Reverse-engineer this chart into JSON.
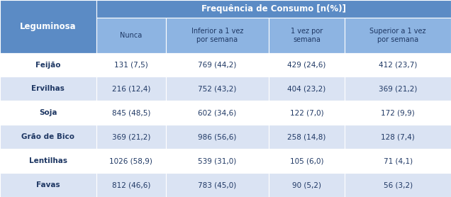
{
  "title": "Frequência de Consumo [n(%)]",
  "col_headers": [
    "Leguminosa",
    "Nunca",
    "Inferior a 1 vez\npor semana",
    "1 vez por\nsemana",
    "Superior a 1 vez\npor semana"
  ],
  "rows": [
    [
      "Feijão",
      "131 (7,5)",
      "769 (44,2)",
      "429 (24,6)",
      "412 (23,7)"
    ],
    [
      "Ervilhas",
      "216 (12,4)",
      "752 (43,2)",
      "404 (23,2)",
      "369 (21,2)"
    ],
    [
      "Soja",
      "845 (48,5)",
      "602 (34,6)",
      "122 (7,0)",
      "172 (9,9)"
    ],
    [
      "Grão de Bico",
      "369 (21,2)",
      "986 (56,6)",
      "258 (14,8)",
      "128 (7,4)"
    ],
    [
      "Lentilhas",
      "1026 (58,9)",
      "539 (31,0)",
      "105 (6,0)",
      "71 (4,1)"
    ],
    [
      "Favas",
      "812 (46,6)",
      "783 (45,0)",
      "90 (5,2)",
      "56 (3,2)"
    ]
  ],
  "header_bg_color": "#5B8BC5",
  "header_text_color": "#FFFFFF",
  "subheader_bg_color": "#8DB4E2",
  "subheader_text_color": "#1F3864",
  "left_header_bg_color": "#5B8BC5",
  "left_header_text_color": "#FFFFFF",
  "left_col_odd_bg": "#FFFFFF",
  "left_col_even_bg": "#DAE3F3",
  "left_col_text_color": "#1F3864",
  "even_row_bg": "#DAE3F3",
  "odd_row_bg": "#FFFFFF",
  "cell_text_color": "#1F3864",
  "fig_width": 6.36,
  "fig_height": 2.78,
  "dpi": 100,
  "col_widths_rel": [
    1.45,
    1.05,
    1.55,
    1.15,
    1.6
  ],
  "row_heights_rel": [
    0.75,
    1.45,
    1.0,
    1.0,
    1.0,
    1.0,
    1.0,
    1.0
  ]
}
